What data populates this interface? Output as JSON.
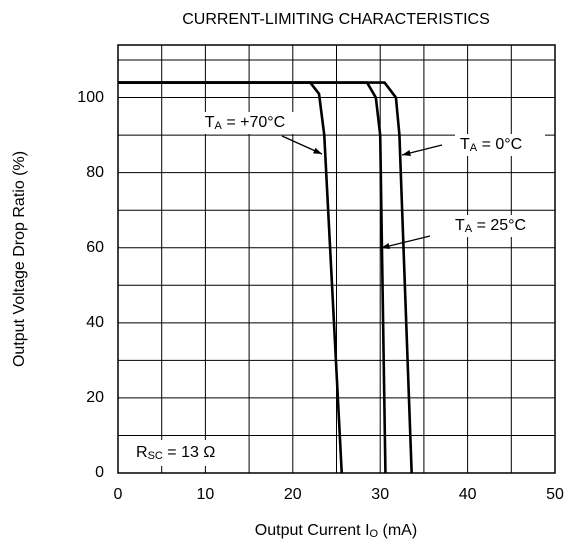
{
  "chart_data": {
    "type": "line",
    "title": "CURRENT-LIMITING CHARACTERISTICS",
    "x_label": {
      "main": "Output Current I",
      "sub": "O",
      "tail": " (mA)"
    },
    "y_label": "Output Voltage Drop Ratio (%)",
    "xlim": [
      0,
      50
    ],
    "xticks": [
      0,
      10,
      20,
      30,
      40,
      50
    ],
    "xminor": [
      5,
      15,
      25,
      35,
      45
    ],
    "ylim": [
      0,
      114
    ],
    "yticks": [
      0,
      20,
      40,
      60,
      80,
      100
    ],
    "yminor": [
      10,
      30,
      50,
      70,
      90,
      110
    ],
    "grid": true,
    "series": [
      {
        "name": {
          "main": "T",
          "sub": "A",
          "tail": " = +70°C"
        },
        "color": "#000000",
        "x": [
          0,
          22,
          23,
          23.6,
          25.6
        ],
        "values": [
          104,
          104,
          101,
          90,
          0
        ]
      },
      {
        "name": {
          "main": "T",
          "sub": "A",
          "tail": " = 25°C"
        },
        "color": "#000000",
        "x": [
          0,
          28.5,
          29.5,
          30,
          30.6
        ],
        "values": [
          104,
          104,
          100,
          90,
          0
        ]
      },
      {
        "name": {
          "main": "T",
          "sub": "A",
          "tail": " = 0°C"
        },
        "color": "#000000",
        "x": [
          0,
          30.5,
          31.8,
          32.2,
          33.6
        ],
        "values": [
          104,
          104,
          100,
          90,
          0
        ]
      }
    ],
    "note": {
      "main": "R",
      "sub": "SC",
      "tail": " = 13 Ω"
    }
  }
}
